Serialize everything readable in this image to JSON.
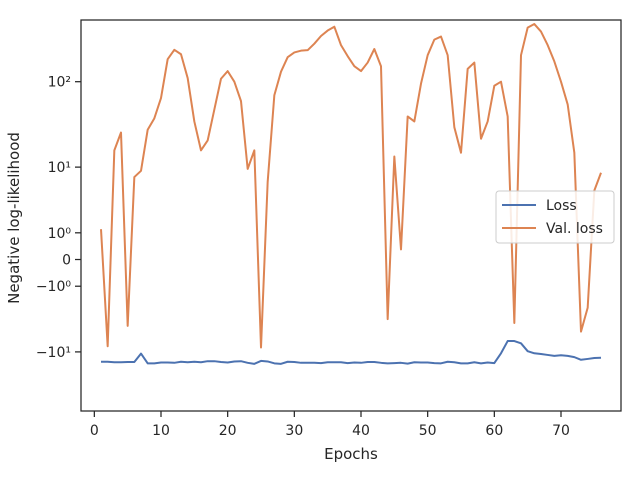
{
  "chart_data": {
    "type": "line",
    "xlabel": "Epochs",
    "ylabel": "Negative log-likelihood",
    "yscale": "symlog",
    "xlim": [
      -2,
      79
    ],
    "ylim": [
      -50,
      500
    ],
    "x_ticks": [
      0,
      10,
      20,
      30,
      40,
      50,
      60,
      70
    ],
    "x_tick_labels": [
      "0",
      "10",
      "20",
      "30",
      "40",
      "50",
      "60",
      "70"
    ],
    "y_ticks": [
      -10,
      -1,
      0,
      1,
      10,
      100
    ],
    "y_tick_labels": [
      "−10¹",
      "−10⁰",
      "0",
      "10⁰",
      "10¹",
      "10²"
    ],
    "legend_position": "center-right",
    "grid": false,
    "series": [
      {
        "name": "Loss",
        "color": "#4c72b0",
        "x": [
          1,
          2,
          3,
          4,
          5,
          6,
          7,
          8,
          9,
          10,
          11,
          12,
          13,
          14,
          15,
          16,
          17,
          18,
          19,
          20,
          21,
          22,
          23,
          24,
          25,
          26,
          27,
          28,
          29,
          30,
          31,
          32,
          33,
          34,
          35,
          36,
          37,
          38,
          39,
          40,
          41,
          42,
          43,
          44,
          45,
          46,
          47,
          48,
          49,
          50,
          51,
          52,
          53,
          54,
          55,
          56,
          57,
          58,
          59,
          60,
          61,
          62,
          63,
          64,
          65,
          66,
          67,
          68,
          69,
          70,
          71,
          72,
          73,
          74,
          75,
          76
        ],
        "values": [
          -13.2,
          -13.2,
          -13.4,
          -13.4,
          -13.3,
          -13.3,
          -10.5,
          -13.8,
          -13.8,
          -13.5,
          -13.5,
          -13.6,
          -13.2,
          -13.4,
          -13.2,
          -13.4,
          -13.0,
          -13.0,
          -13.3,
          -13.5,
          -13.1,
          -13.0,
          -13.6,
          -14.0,
          -12.9,
          -13.1,
          -13.8,
          -14.0,
          -13.2,
          -13.3,
          -13.6,
          -13.6,
          -13.6,
          -13.7,
          -13.4,
          -13.4,
          -13.4,
          -13.7,
          -13.5,
          -13.6,
          -13.3,
          -13.3,
          -13.6,
          -13.8,
          -13.7,
          -13.6,
          -13.9,
          -13.4,
          -13.5,
          -13.5,
          -13.7,
          -13.8,
          -13.2,
          -13.4,
          -13.8,
          -13.8,
          -13.4,
          -13.8,
          -13.5,
          -13.7,
          -10.4,
          -7.3,
          -7.3,
          -7.8,
          -9.8,
          -10.4,
          -10.6,
          -10.9,
          -11.2,
          -11.0,
          -11.2,
          -11.6,
          -12.5,
          -12.2,
          -11.9,
          -11.8
        ]
      },
      {
        "name": "Val. loss",
        "color": "#dd8452",
        "x": [
          1,
          2,
          3,
          4,
          5,
          6,
          7,
          8,
          9,
          10,
          11,
          12,
          13,
          14,
          15,
          16,
          17,
          18,
          19,
          20,
          21,
          22,
          23,
          24,
          25,
          26,
          27,
          28,
          29,
          30,
          31,
          32,
          33,
          34,
          35,
          36,
          37,
          38,
          39,
          40,
          41,
          42,
          43,
          44,
          45,
          46,
          47,
          48,
          49,
          50,
          51,
          52,
          53,
          54,
          55,
          56,
          57,
          58,
          59,
          60,
          61,
          62,
          63,
          64,
          65,
          66,
          67,
          68,
          69,
          70,
          71,
          72,
          73,
          74,
          75,
          76
        ],
        "values": [
          1.2,
          -8.5,
          16,
          26,
          -4.6,
          7.5,
          9,
          28,
          38,
          65,
          180,
          230,
          205,
          110,
          35,
          16,
          21,
          48,
          108,
          132,
          100,
          60,
          9.5,
          16,
          -8.8,
          6.5,
          70,
          130,
          190,
          215,
          225,
          228,
          270,
          330,
          380,
          420,
          260,
          195,
          150,
          132,
          165,
          235,
          150,
          -3.7,
          13.5,
          0.3,
          40,
          35,
          95,
          200,
          300,
          325,
          200,
          30,
          15,
          140,
          165,
          22,
          35,
          90,
          100,
          40,
          -4.2,
          200,
          410,
          450,
          370,
          260,
          170,
          100,
          55,
          15,
          -5.5,
          -2.5,
          5.0,
          8.5
        ]
      }
    ]
  }
}
